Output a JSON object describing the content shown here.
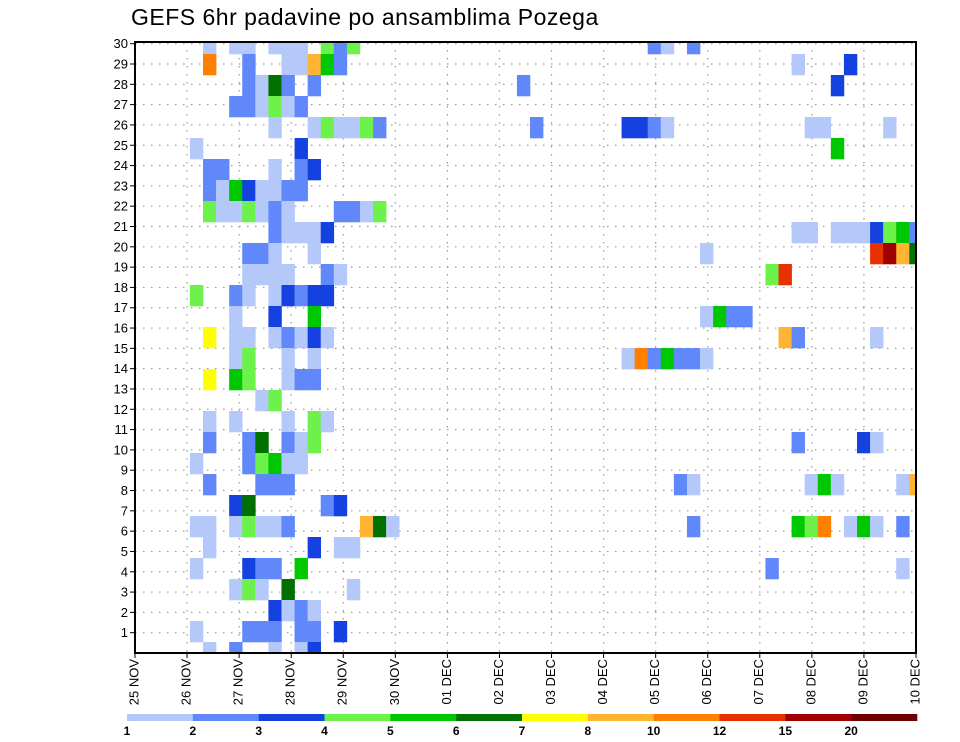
{
  "chart_data": {
    "type": "heatmap",
    "title": "GEFS 6hr padavine po ansamblima Pozega",
    "xlabel": "",
    "ylabel": "",
    "x_step": "6hr",
    "x_start": "25 NOV 00Z",
    "x_tick_labels": [
      "25 NOV",
      "26 NOV",
      "27 NOV",
      "28 NOV",
      "29 NOV",
      "30 NOV",
      "01 DEC",
      "02 DEC",
      "03 DEC",
      "04 DEC",
      "05 DEC",
      "06 DEC",
      "07 DEC",
      "08 DEC",
      "09 DEC",
      "10 DEC"
    ],
    "y_tick_labels": [
      "1",
      "2",
      "3",
      "4",
      "5",
      "6",
      "7",
      "8",
      "9",
      "10",
      "11",
      "12",
      "13",
      "14",
      "15",
      "16",
      "17",
      "18",
      "19",
      "20",
      "21",
      "22",
      "23",
      "24",
      "25",
      "26",
      "27",
      "28",
      "29",
      "30"
    ],
    "ylim": [
      0,
      30
    ],
    "grid": true,
    "colorbar": {
      "placement": "bottom",
      "boundaries": [
        "1",
        "2",
        "3",
        "4",
        "5",
        "6",
        "7",
        "8",
        "10",
        "12",
        "15",
        "20"
      ],
      "colors": [
        "#b4c8fa",
        "#6088fa",
        "#1441e0",
        "#6cf24a",
        "#00c800",
        "#007000",
        "#ffff00",
        "#ffb432",
        "#ff8000",
        "#e63200",
        "#a00000",
        "#6e0000"
      ]
    },
    "cells_format": [
      "step_6hr",
      "member",
      "bin"
    ],
    "cells": [
      [
        5,
        30,
        0
      ],
      [
        7,
        30,
        0
      ],
      [
        8,
        30,
        0
      ],
      [
        10,
        30,
        0
      ],
      [
        11,
        30,
        0
      ],
      [
        12,
        30,
        0
      ],
      [
        14,
        30,
        3
      ],
      [
        15,
        30,
        1
      ],
      [
        16,
        30,
        3
      ],
      [
        39,
        30,
        1
      ],
      [
        40,
        30,
        0
      ],
      [
        42,
        30,
        1
      ],
      [
        5,
        29,
        8
      ],
      [
        8,
        29,
        1
      ],
      [
        11,
        29,
        0
      ],
      [
        12,
        29,
        0
      ],
      [
        13,
        29,
        7
      ],
      [
        14,
        29,
        4
      ],
      [
        15,
        29,
        1
      ],
      [
        50,
        29,
        0
      ],
      [
        54,
        29,
        2
      ],
      [
        8,
        28,
        1
      ],
      [
        9,
        28,
        0
      ],
      [
        10,
        28,
        5
      ],
      [
        11,
        28,
        1
      ],
      [
        13,
        28,
        1
      ],
      [
        29,
        28,
        1
      ],
      [
        53,
        28,
        2
      ],
      [
        7,
        27,
        1
      ],
      [
        8,
        27,
        1
      ],
      [
        9,
        27,
        0
      ],
      [
        10,
        27,
        3
      ],
      [
        11,
        27,
        0
      ],
      [
        12,
        27,
        1
      ],
      [
        10,
        26,
        0
      ],
      [
        13,
        26,
        0
      ],
      [
        14,
        26,
        3
      ],
      [
        15,
        26,
        0
      ],
      [
        16,
        26,
        0
      ],
      [
        17,
        26,
        3
      ],
      [
        18,
        26,
        1
      ],
      [
        30,
        26,
        1
      ],
      [
        37,
        26,
        2
      ],
      [
        38,
        26,
        2
      ],
      [
        39,
        26,
        1
      ],
      [
        40,
        26,
        0
      ],
      [
        51,
        26,
        0
      ],
      [
        52,
        26,
        0
      ],
      [
        57,
        26,
        0
      ],
      [
        4,
        25,
        0
      ],
      [
        12,
        25,
        2
      ],
      [
        53,
        25,
        4
      ],
      [
        5,
        24,
        1
      ],
      [
        6,
        24,
        1
      ],
      [
        10,
        24,
        0
      ],
      [
        12,
        24,
        1
      ],
      [
        13,
        24,
        2
      ],
      [
        5,
        23,
        1
      ],
      [
        6,
        23,
        0
      ],
      [
        7,
        23,
        4
      ],
      [
        8,
        23,
        2
      ],
      [
        9,
        23,
        0
      ],
      [
        10,
        23,
        0
      ],
      [
        11,
        23,
        1
      ],
      [
        12,
        23,
        1
      ],
      [
        5,
        22,
        3
      ],
      [
        6,
        22,
        0
      ],
      [
        7,
        22,
        0
      ],
      [
        8,
        22,
        3
      ],
      [
        9,
        22,
        0
      ],
      [
        10,
        22,
        1
      ],
      [
        11,
        22,
        0
      ],
      [
        15,
        22,
        1
      ],
      [
        16,
        22,
        1
      ],
      [
        17,
        22,
        0
      ],
      [
        18,
        22,
        3
      ],
      [
        10,
        21,
        1
      ],
      [
        11,
        21,
        0
      ],
      [
        12,
        21,
        0
      ],
      [
        13,
        21,
        0
      ],
      [
        14,
        21,
        2
      ],
      [
        50,
        21,
        0
      ],
      [
        51,
        21,
        0
      ],
      [
        53,
        21,
        0
      ],
      [
        54,
        21,
        0
      ],
      [
        55,
        21,
        0
      ],
      [
        56,
        21,
        2
      ],
      [
        57,
        21,
        3
      ],
      [
        58,
        21,
        4
      ],
      [
        59,
        21,
        1
      ],
      [
        8,
        20,
        1
      ],
      [
        9,
        20,
        1
      ],
      [
        10,
        20,
        0
      ],
      [
        13,
        20,
        0
      ],
      [
        43,
        20,
        0
      ],
      [
        56,
        20,
        9
      ],
      [
        57,
        20,
        10
      ],
      [
        58,
        20,
        7
      ],
      [
        59,
        20,
        5
      ],
      [
        8,
        19,
        0
      ],
      [
        9,
        19,
        0
      ],
      [
        10,
        19,
        0
      ],
      [
        11,
        19,
        0
      ],
      [
        14,
        19,
        1
      ],
      [
        15,
        19,
        0
      ],
      [
        48,
        19,
        3
      ],
      [
        49,
        19,
        9
      ],
      [
        4,
        18,
        3
      ],
      [
        7,
        18,
        1
      ],
      [
        8,
        18,
        0
      ],
      [
        10,
        18,
        0
      ],
      [
        11,
        18,
        2
      ],
      [
        12,
        18,
        1
      ],
      [
        13,
        18,
        2
      ],
      [
        14,
        18,
        2
      ],
      [
        7,
        17,
        0
      ],
      [
        10,
        17,
        2
      ],
      [
        13,
        17,
        4
      ],
      [
        43,
        17,
        0
      ],
      [
        44,
        17,
        4
      ],
      [
        45,
        17,
        1
      ],
      [
        46,
        17,
        1
      ],
      [
        5,
        16,
        6
      ],
      [
        7,
        16,
        0
      ],
      [
        8,
        16,
        0
      ],
      [
        10,
        16,
        0
      ],
      [
        11,
        16,
        1
      ],
      [
        12,
        16,
        0
      ],
      [
        13,
        16,
        2
      ],
      [
        14,
        16,
        0
      ],
      [
        49,
        16,
        7
      ],
      [
        50,
        16,
        1
      ],
      [
        56,
        16,
        0
      ],
      [
        7,
        15,
        0
      ],
      [
        8,
        15,
        3
      ],
      [
        11,
        15,
        0
      ],
      [
        13,
        15,
        0
      ],
      [
        37,
        15,
        0
      ],
      [
        38,
        15,
        8
      ],
      [
        39,
        15,
        1
      ],
      [
        40,
        15,
        4
      ],
      [
        41,
        15,
        1
      ],
      [
        42,
        15,
        1
      ],
      [
        43,
        15,
        0
      ],
      [
        5,
        14,
        6
      ],
      [
        7,
        14,
        4
      ],
      [
        8,
        14,
        3
      ],
      [
        11,
        14,
        0
      ],
      [
        12,
        14,
        1
      ],
      [
        13,
        14,
        1
      ],
      [
        9,
        13,
        0
      ],
      [
        10,
        13,
        3
      ],
      [
        5,
        12,
        0
      ],
      [
        7,
        12,
        0
      ],
      [
        11,
        12,
        0
      ],
      [
        13,
        12,
        3
      ],
      [
        14,
        12,
        0
      ],
      [
        5,
        11,
        1
      ],
      [
        8,
        11,
        1
      ],
      [
        9,
        11,
        5
      ],
      [
        11,
        11,
        1
      ],
      [
        12,
        11,
        0
      ],
      [
        13,
        11,
        3
      ],
      [
        50,
        11,
        1
      ],
      [
        55,
        11,
        2
      ],
      [
        56,
        11,
        0
      ],
      [
        4,
        10,
        0
      ],
      [
        8,
        10,
        1
      ],
      [
        9,
        10,
        3
      ],
      [
        10,
        10,
        4
      ],
      [
        11,
        10,
        0
      ],
      [
        12,
        10,
        0
      ],
      [
        5,
        9,
        1
      ],
      [
        9,
        9,
        1
      ],
      [
        10,
        9,
        1
      ],
      [
        11,
        9,
        1
      ],
      [
        41,
        9,
        1
      ],
      [
        42,
        9,
        0
      ],
      [
        51,
        9,
        0
      ],
      [
        52,
        9,
        4
      ],
      [
        53,
        9,
        0
      ],
      [
        58,
        9,
        0
      ],
      [
        59,
        9,
        7
      ],
      [
        7,
        8,
        2
      ],
      [
        8,
        8,
        5
      ],
      [
        14,
        8,
        1
      ],
      [
        15,
        8,
        2
      ],
      [
        4,
        7,
        0
      ],
      [
        5,
        7,
        0
      ],
      [
        7,
        7,
        0
      ],
      [
        8,
        7,
        3
      ],
      [
        9,
        7,
        0
      ],
      [
        10,
        7,
        0
      ],
      [
        11,
        7,
        1
      ],
      [
        17,
        7,
        7
      ],
      [
        18,
        7,
        5
      ],
      [
        19,
        7,
        0
      ],
      [
        42,
        7,
        1
      ],
      [
        50,
        7,
        4
      ],
      [
        51,
        7,
        3
      ],
      [
        52,
        7,
        8
      ],
      [
        54,
        7,
        0
      ],
      [
        55,
        7,
        4
      ],
      [
        56,
        7,
        0
      ],
      [
        58,
        7,
        1
      ],
      [
        5,
        6,
        0
      ],
      [
        13,
        6,
        2
      ],
      [
        15,
        6,
        0
      ],
      [
        16,
        6,
        0
      ],
      [
        4,
        5,
        0
      ],
      [
        8,
        5,
        2
      ],
      [
        9,
        5,
        1
      ],
      [
        10,
        5,
        1
      ],
      [
        12,
        5,
        4
      ],
      [
        48,
        5,
        1
      ],
      [
        58,
        5,
        0
      ],
      [
        7,
        4,
        0
      ],
      [
        8,
        4,
        3
      ],
      [
        9,
        4,
        0
      ],
      [
        11,
        4,
        5
      ],
      [
        16,
        4,
        0
      ],
      [
        10,
        3,
        2
      ],
      [
        11,
        3,
        0
      ],
      [
        12,
        3,
        1
      ],
      [
        13,
        3,
        0
      ],
      [
        4,
        2,
        0
      ],
      [
        8,
        2,
        1
      ],
      [
        9,
        2,
        1
      ],
      [
        10,
        2,
        1
      ],
      [
        12,
        2,
        1
      ],
      [
        13,
        2,
        1
      ],
      [
        15,
        2,
        2
      ],
      [
        5,
        1,
        0
      ],
      [
        7,
        1,
        1
      ],
      [
        10,
        1,
        0
      ],
      [
        12,
        1,
        0
      ],
      [
        13,
        1,
        2
      ]
    ]
  }
}
